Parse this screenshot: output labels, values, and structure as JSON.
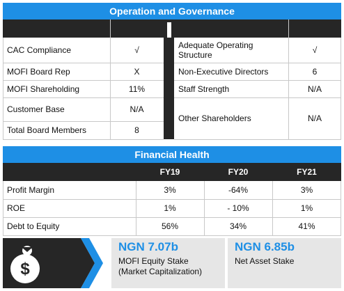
{
  "governance": {
    "title": "Operation and Governance",
    "left": [
      {
        "label": "CAC Compliance",
        "value": "√"
      },
      {
        "label": "MOFI Board Rep",
        "value": "X"
      },
      {
        "label": "MOFI Shareholding",
        "value": "11%"
      },
      {
        "label": "Customer Base",
        "value": "N/A"
      },
      {
        "label": "Total Board Members",
        "value": "8"
      }
    ],
    "right": [
      {
        "label": "Adequate Operating Structure",
        "value": "√"
      },
      {
        "label": "Non-Executive Directors",
        "value": "6"
      },
      {
        "label": "Staff Strength",
        "value": "N/A"
      },
      {
        "label": "Other Shareholders",
        "value": "N/A"
      }
    ]
  },
  "financial": {
    "title": "Financial Health",
    "columns": [
      "FY19",
      "FY20",
      "FY21"
    ],
    "rows": [
      {
        "label": "Profit Margin",
        "values": [
          "3%",
          "-64%",
          "3%"
        ]
      },
      {
        "label": "ROE",
        "values": [
          "1%",
          "- 10%",
          "1%"
        ]
      },
      {
        "label": "Debt to Equity",
        "values": [
          "56%",
          "34%",
          "41%"
        ]
      }
    ]
  },
  "stakes": {
    "equity": {
      "amount": "NGN 7.07b",
      "label": "MOFI Equity Stake",
      "sub": "(Market Capitalization)"
    },
    "net_asset": {
      "amount": "NGN 6.85b",
      "label": "Net Asset Stake"
    }
  },
  "colors": {
    "accent": "#1e8fe5",
    "dark": "#262626",
    "grey": "#e6e6e6"
  },
  "icons": {
    "money_bag": "money-bag-icon",
    "chevron": "chevron-right-icon"
  }
}
